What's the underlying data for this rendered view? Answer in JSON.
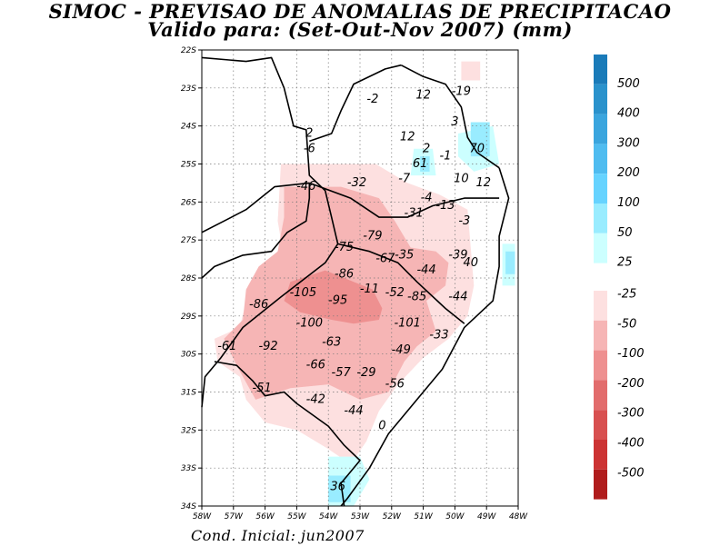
{
  "title": "SIMOC - PREVISAO DE ANOMALIAS DE PRECIPITACAO",
  "subtitle": "Valido para: (Set-Out-Nov 2007) (mm)",
  "footer": "Cond. Inicial: jun2007",
  "map": {
    "lon_range": [
      -58,
      -48
    ],
    "lat_range": [
      -34,
      -22
    ],
    "grid": true,
    "x_ticks": [
      {
        "lon": -58,
        "label": "58W"
      },
      {
        "lon": -57,
        "label": "57W"
      },
      {
        "lon": -56,
        "label": "56W"
      },
      {
        "lon": -55,
        "label": "55W"
      },
      {
        "lon": -54,
        "label": "54W"
      },
      {
        "lon": -53,
        "label": "53W"
      },
      {
        "lon": -52,
        "label": "52W"
      },
      {
        "lon": -51,
        "label": "51W"
      },
      {
        "lon": -50,
        "label": "50W"
      },
      {
        "lon": -49,
        "label": "49W"
      },
      {
        "lon": -48,
        "label": "48W"
      }
    ],
    "y_ticks": [
      {
        "lat": -22,
        "label": "22S"
      },
      {
        "lat": -23,
        "label": "23S"
      },
      {
        "lat": -24,
        "label": "24S"
      },
      {
        "lat": -25,
        "label": "25S"
      },
      {
        "lat": -26,
        "label": "26S"
      },
      {
        "lat": -27,
        "label": "27S"
      },
      {
        "lat": -28,
        "label": "28S"
      },
      {
        "lat": -29,
        "label": "29S"
      },
      {
        "lat": -30,
        "label": "30S"
      },
      {
        "lat": -31,
        "label": "31S"
      },
      {
        "lat": -32,
        "label": "32S"
      },
      {
        "lat": -33,
        "label": "33S"
      },
      {
        "lat": -34,
        "label": "34S"
      }
    ]
  },
  "colors": {
    "pos_25": "#ccffff",
    "pos_50": "#99ecff",
    "pos_100": "#66d3ff",
    "pos_200": "#4fbcf0",
    "pos_300": "#3aa5de",
    "pos_400": "#2a92cc",
    "pos_500": "#1a7bb9",
    "neg_25": "#fde0e0",
    "neg_50": "#f6b5b5",
    "neg_100": "#ee9090",
    "neg_200": "#e26c6c",
    "neg_300": "#d85050",
    "neg_400": "#cc3333",
    "neg_500": "#b01c1c"
  },
  "colorbar": {
    "positive": [
      {
        "label": "500",
        "color": "#1a7bb9"
      },
      {
        "label": "400",
        "color": "#2a92cc"
      },
      {
        "label": "300",
        "color": "#3aa5de"
      },
      {
        "label": "200",
        "color": "#4fbcf0"
      },
      {
        "label": "100",
        "color": "#66d3ff"
      },
      {
        "label": "50",
        "color": "#99ecff"
      },
      {
        "label": "25",
        "color": "#ccffff"
      }
    ],
    "negative": [
      {
        "label": "-25",
        "color": "#fde0e0"
      },
      {
        "label": "-50",
        "color": "#f6b5b5"
      },
      {
        "label": "-100",
        "color": "#ee9090"
      },
      {
        "label": "-200",
        "color": "#e26c6c"
      },
      {
        "label": "-300",
        "color": "#d85050"
      },
      {
        "label": "-400",
        "color": "#cc3333"
      },
      {
        "label": "-500",
        "color": "#b01c1c"
      }
    ]
  },
  "values": [
    {
      "text": "-19",
      "lon": -49.8,
      "lat": -23.1
    },
    {
      "text": "-2",
      "lon": -52.6,
      "lat": -23.3
    },
    {
      "text": "12",
      "lon": -51.0,
      "lat": -23.2
    },
    {
      "text": "3",
      "lon": -50.0,
      "lat": -23.9
    },
    {
      "text": "12",
      "lon": -51.5,
      "lat": -24.3
    },
    {
      "text": "2",
      "lon": -54.6,
      "lat": -24.2
    },
    {
      "text": "2",
      "lon": -50.9,
      "lat": -24.6
    },
    {
      "text": "70",
      "lon": -49.3,
      "lat": -24.6
    },
    {
      "text": "-6",
      "lon": -54.6,
      "lat": -24.6
    },
    {
      "text": "-1",
      "lon": -50.3,
      "lat": -24.8
    },
    {
      "text": "61",
      "lon": -51.1,
      "lat": -25.0
    },
    {
      "text": "-7",
      "lon": -51.6,
      "lat": -25.4
    },
    {
      "text": "10",
      "lon": -49.8,
      "lat": -25.4
    },
    {
      "text": "12",
      "lon": -49.1,
      "lat": -25.5
    },
    {
      "text": "-32",
      "lon": -53.1,
      "lat": -25.5
    },
    {
      "text": "-46",
      "lon": -54.7,
      "lat": -25.6
    },
    {
      "text": "-4",
      "lon": -50.9,
      "lat": -25.9
    },
    {
      "text": "-13",
      "lon": -50.3,
      "lat": -26.1
    },
    {
      "text": "-31",
      "lon": -51.3,
      "lat": -26.3
    },
    {
      "text": "-3",
      "lon": -49.7,
      "lat": -26.5
    },
    {
      "text": "-79",
      "lon": -52.6,
      "lat": -26.9
    },
    {
      "text": "-75",
      "lon": -53.5,
      "lat": -27.2
    },
    {
      "text": "-35",
      "lon": -51.6,
      "lat": -27.4
    },
    {
      "text": "-67",
      "lon": -52.2,
      "lat": -27.5
    },
    {
      "text": "-39",
      "lon": -49.9,
      "lat": -27.4
    },
    {
      "text": "40",
      "lon": -49.5,
      "lat": -27.6
    },
    {
      "text": "-44",
      "lon": -50.9,
      "lat": -27.8
    },
    {
      "text": "-86",
      "lon": -53.5,
      "lat": -27.9
    },
    {
      "text": "-105",
      "lon": -54.8,
      "lat": -28.4
    },
    {
      "text": "-11",
      "lon": -52.7,
      "lat": -28.3
    },
    {
      "text": "-52",
      "lon": -51.9,
      "lat": -28.4
    },
    {
      "text": "-85",
      "lon": -51.2,
      "lat": -28.5
    },
    {
      "text": "-44",
      "lon": -49.9,
      "lat": -28.5
    },
    {
      "text": "-95",
      "lon": -53.7,
      "lat": -28.6
    },
    {
      "text": "-86",
      "lon": -56.2,
      "lat": -28.7
    },
    {
      "text": "-100",
      "lon": -54.6,
      "lat": -29.2
    },
    {
      "text": "-101",
      "lon": -51.5,
      "lat": -29.2
    },
    {
      "text": "-33",
      "lon": -50.5,
      "lat": -29.5
    },
    {
      "text": "-63",
      "lon": -53.9,
      "lat": -29.7
    },
    {
      "text": "-61",
      "lon": -57.2,
      "lat": -29.8
    },
    {
      "text": "-92",
      "lon": -55.9,
      "lat": -29.8
    },
    {
      "text": "-49",
      "lon": -51.7,
      "lat": -29.9
    },
    {
      "text": "-66",
      "lon": -54.4,
      "lat": -30.3
    },
    {
      "text": "-57",
      "lon": -53.6,
      "lat": -30.5
    },
    {
      "text": "-29",
      "lon": -52.8,
      "lat": -30.5
    },
    {
      "text": "-56",
      "lon": -51.9,
      "lat": -30.8
    },
    {
      "text": "-51",
      "lon": -56.1,
      "lat": -30.9
    },
    {
      "text": "-42",
      "lon": -54.4,
      "lat": -31.2
    },
    {
      "text": "-44",
      "lon": -53.2,
      "lat": -31.5
    },
    {
      "text": "0",
      "lon": -52.3,
      "lat": -31.9
    },
    {
      "text": "36",
      "lon": -53.7,
      "lat": -33.5
    }
  ],
  "shaded_regions": [
    {
      "level": "neg_25",
      "poly": [
        [
          -55.5,
          -25
        ],
        [
          -52.5,
          -25
        ],
        [
          -51.5,
          -25.5
        ],
        [
          -50.5,
          -25.8
        ],
        [
          -49.6,
          -26.2
        ],
        [
          -49.5,
          -27.2
        ],
        [
          -49.4,
          -28.2
        ],
        [
          -49.6,
          -29
        ],
        [
          -50.2,
          -29.6
        ],
        [
          -51,
          -30.1
        ],
        [
          -51.8,
          -30.8
        ],
        [
          -52.4,
          -31.5
        ],
        [
          -52.8,
          -32.3
        ],
        [
          -53.3,
          -32.9
        ],
        [
          -54,
          -32.5
        ],
        [
          -55,
          -32
        ],
        [
          -56,
          -31.8
        ],
        [
          -56.6,
          -31.2
        ],
        [
          -56.8,
          -30.6
        ],
        [
          -57.5,
          -30.2
        ],
        [
          -57.6,
          -29.6
        ],
        [
          -56.8,
          -29.3
        ],
        [
          -56.6,
          -28.6
        ],
        [
          -56.2,
          -28
        ],
        [
          -55.4,
          -27.5
        ],
        [
          -55.6,
          -26.5
        ]
      ]
    },
    {
      "level": "neg_25",
      "poly": [
        [
          -49.8,
          -22.3
        ],
        [
          -49.2,
          -22.3
        ],
        [
          -49.2,
          -22.8
        ],
        [
          -49.8,
          -22.8
        ]
      ]
    },
    {
      "level": "neg_50",
      "poly": [
        [
          -55.4,
          -25.6
        ],
        [
          -53.6,
          -25.6
        ],
        [
          -52.4,
          -25.9
        ],
        [
          -51.9,
          -26.5
        ],
        [
          -51.4,
          -27.2
        ],
        [
          -50.6,
          -27.3
        ],
        [
          -50.2,
          -27.6
        ],
        [
          -50.3,
          -28.2
        ],
        [
          -50.9,
          -28.6
        ],
        [
          -50.6,
          -29.4
        ],
        [
          -51.2,
          -29.8
        ],
        [
          -51.6,
          -30.2
        ],
        [
          -52.1,
          -31
        ],
        [
          -53,
          -31.2
        ],
        [
          -54,
          -30.8
        ],
        [
          -55.2,
          -30.9
        ],
        [
          -56.3,
          -31.2
        ],
        [
          -56.9,
          -30.3
        ],
        [
          -57.3,
          -29.6
        ],
        [
          -56.7,
          -29.1
        ],
        [
          -56.6,
          -28.3
        ],
        [
          -56.2,
          -27.7
        ],
        [
          -55.6,
          -27.3
        ],
        [
          -55.4,
          -26.4
        ]
      ]
    },
    {
      "level": "neg_100",
      "poly": [
        [
          -55.2,
          -28.1
        ],
        [
          -54.1,
          -27.8
        ],
        [
          -53.2,
          -28.1
        ],
        [
          -52.6,
          -28.3
        ],
        [
          -52.3,
          -28.8
        ],
        [
          -52.4,
          -29.1
        ],
        [
          -53.2,
          -29.2
        ],
        [
          -53.9,
          -29.1
        ],
        [
          -54.9,
          -28.9
        ],
        [
          -55.4,
          -28.6
        ]
      ]
    },
    {
      "level": "pos_25",
      "poly": [
        [
          -51.3,
          -24.6
        ],
        [
          -50.7,
          -24.6
        ],
        [
          -50.6,
          -25.3
        ],
        [
          -51.4,
          -25.3
        ]
      ]
    },
    {
      "level": "pos_50",
      "poly": [
        [
          -51.1,
          -24.8
        ],
        [
          -50.8,
          -24.8
        ],
        [
          -50.8,
          -25.2
        ],
        [
          -51.1,
          -25.2
        ]
      ]
    },
    {
      "level": "pos_25",
      "poly": [
        [
          -49.9,
          -24.2
        ],
        [
          -48.8,
          -24.0
        ],
        [
          -48.6,
          -25.0
        ],
        [
          -49.4,
          -25.2
        ],
        [
          -49.9,
          -24.8
        ]
      ]
    },
    {
      "level": "pos_50",
      "poly": [
        [
          -49.5,
          -23.9
        ],
        [
          -48.9,
          -23.9
        ],
        [
          -48.9,
          -24.8
        ],
        [
          -49.5,
          -24.8
        ]
      ]
    },
    {
      "level": "pos_25",
      "poly": [
        [
          -48.5,
          -27.1
        ],
        [
          -48.1,
          -27.1
        ],
        [
          -48.1,
          -28.2
        ],
        [
          -48.5,
          -28.2
        ]
      ]
    },
    {
      "level": "pos_50",
      "poly": [
        [
          -48.4,
          -27.3
        ],
        [
          -48.1,
          -27.3
        ],
        [
          -48.1,
          -27.9
        ],
        [
          -48.4,
          -27.9
        ]
      ]
    },
    {
      "level": "pos_25",
      "poly": [
        [
          -54.0,
          -32.7
        ],
        [
          -53.0,
          -32.7
        ],
        [
          -52.7,
          -33.3
        ],
        [
          -53.2,
          -34
        ],
        [
          -54.0,
          -34
        ]
      ]
    },
    {
      "level": "pos_50",
      "poly": [
        [
          -54.0,
          -33.2
        ],
        [
          -53.3,
          -33.2
        ],
        [
          -53.3,
          -33.9
        ],
        [
          -54.0,
          -33.9
        ]
      ]
    }
  ],
  "boundaries": [
    [
      [
        -58,
        -22.2
      ],
      [
        -56.6,
        -22.3
      ],
      [
        -55.8,
        -22.2
      ],
      [
        -55.4,
        -23.0
      ],
      [
        -55.1,
        -24.0
      ],
      [
        -54.7,
        -24.1
      ],
      [
        -54.6,
        -25.3
      ],
      [
        -54.1,
        -25.7
      ],
      [
        -53.9,
        -26.4
      ],
      [
        -53.7,
        -27.1
      ],
      [
        -54.1,
        -27.6
      ],
      [
        -55.5,
        -28.5
      ],
      [
        -56.7,
        -29.3
      ],
      [
        -57.4,
        -30.1
      ],
      [
        -57.9,
        -30.6
      ],
      [
        -58,
        -31.4
      ]
    ],
    [
      [
        -54.6,
        -24.4
      ],
      [
        -53.9,
        -24.2
      ],
      [
        -53.6,
        -23.6
      ],
      [
        -53.2,
        -22.9
      ],
      [
        -52.2,
        -22.5
      ],
      [
        -51.7,
        -22.4
      ]
    ],
    [
      [
        -51.7,
        -22.4
      ],
      [
        -51.0,
        -22.7
      ],
      [
        -50.3,
        -22.9
      ],
      [
        -49.8,
        -23.5
      ],
      [
        -49.6,
        -24.3
      ],
      [
        -49.3,
        -24.7
      ],
      [
        -48.6,
        -25.1
      ]
    ],
    [
      [
        -54.6,
        -25.5
      ],
      [
        -53.3,
        -25.9
      ],
      [
        -52.4,
        -26.4
      ],
      [
        -51.5,
        -26.4
      ],
      [
        -50.7,
        -26.1
      ],
      [
        -49.7,
        -25.9
      ],
      [
        -48.6,
        -25.9
      ]
    ],
    [
      [
        -53.7,
        -27.1
      ],
      [
        -52.7,
        -27.3
      ],
      [
        -51.8,
        -27.6
      ],
      [
        -51.2,
        -28.1
      ],
      [
        -50.3,
        -28.8
      ],
      [
        -49.7,
        -29.2
      ]
    ],
    [
      [
        -58,
        -26.8
      ],
      [
        -57.3,
        -26.5
      ],
      [
        -56.6,
        -26.2
      ],
      [
        -55.7,
        -25.6
      ],
      [
        -54.6,
        -25.5
      ]
    ],
    [
      [
        -48.6,
        -25.1
      ],
      [
        -48.3,
        -25.9
      ],
      [
        -48.6,
        -26.9
      ],
      [
        -48.6,
        -27.7
      ],
      [
        -48.8,
        -28.6
      ],
      [
        -49.7,
        -29.3
      ],
      [
        -50.4,
        -30.4
      ],
      [
        -51.2,
        -31.2
      ],
      [
        -52.1,
        -32.1
      ],
      [
        -52.7,
        -33.0
      ],
      [
        -53.4,
        -33.8
      ],
      [
        -53.6,
        -34
      ]
    ],
    [
      [
        -57.6,
        -30.2
      ],
      [
        -56.9,
        -30.3
      ],
      [
        -56.4,
        -30.7
      ],
      [
        -56.0,
        -31.1
      ],
      [
        -55.4,
        -31.0
      ],
      [
        -55.0,
        -31.3
      ],
      [
        -54.5,
        -31.6
      ],
      [
        -54.0,
        -31.9
      ],
      [
        -53.5,
        -32.4
      ],
      [
        -53.0,
        -32.8
      ],
      [
        -53.6,
        -33.4
      ],
      [
        -53.5,
        -34.0
      ]
    ],
    [
      [
        -58,
        -28.0
      ],
      [
        -57.6,
        -27.7
      ],
      [
        -56.7,
        -27.4
      ],
      [
        -55.8,
        -27.3
      ],
      [
        -55.3,
        -26.8
      ],
      [
        -54.7,
        -26.5
      ],
      [
        -54.6,
        -25.9
      ],
      [
        -54.6,
        -25.5
      ]
    ]
  ]
}
